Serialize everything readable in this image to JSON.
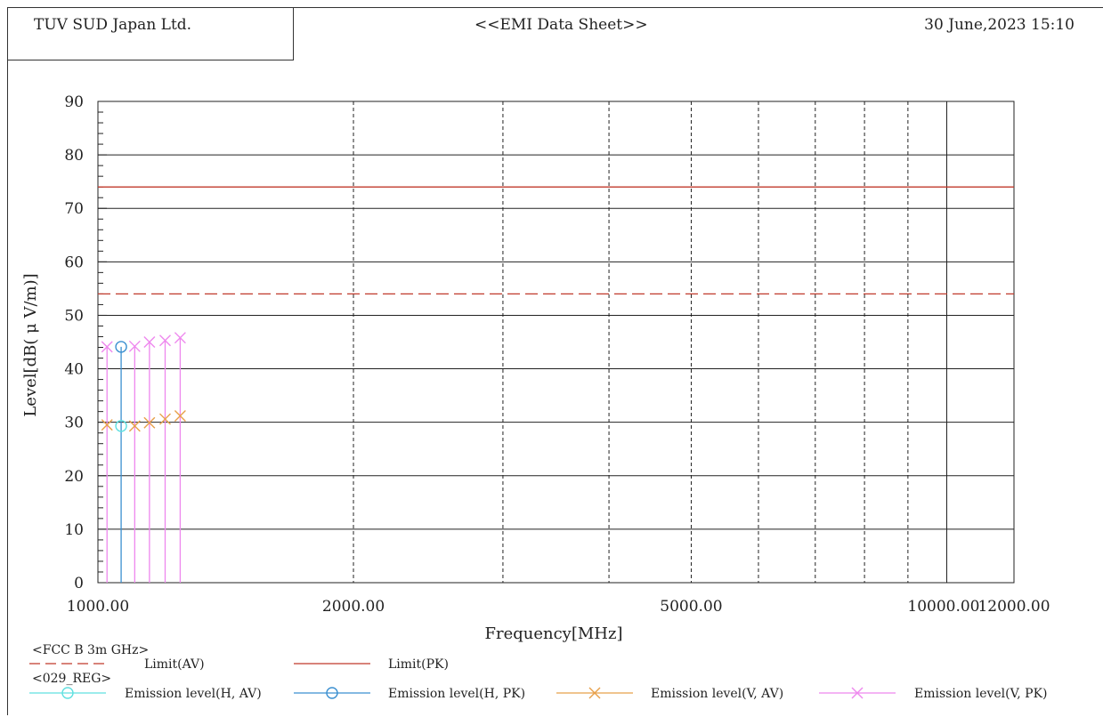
{
  "header": {
    "company": "TUV SUD Japan Ltd.",
    "title": "<<EMI Data Sheet>>",
    "datetime": "30 June,2023 15:10"
  },
  "chart_data": {
    "type": "scatter",
    "xlabel": "Frequency[MHz]",
    "ylabel": "Level[dB( μ V/m)]",
    "xscale": "log",
    "xlim": [
      1000,
      12000
    ],
    "ylim": [
      0,
      90
    ],
    "x_tick_labels": [
      "1000.00",
      "2000.00",
      "5000.00",
      "10000.00",
      "12000.00"
    ],
    "x_grid": [
      1000,
      2000,
      3000,
      4000,
      5000,
      6000,
      7000,
      8000,
      9000,
      10000,
      12000
    ],
    "y_ticks": [
      0,
      10,
      20,
      30,
      40,
      50,
      60,
      70,
      80,
      90
    ],
    "grid": true,
    "limits": [
      {
        "name": "Limit(AV)",
        "value": 54,
        "style": "dashed",
        "color": "#c0392b"
      },
      {
        "name": "Limit(PK)",
        "value": 74,
        "style": "solid",
        "color": "#c0392b"
      }
    ],
    "series": [
      {
        "name": "Emission level(H, AV)",
        "marker": "circle",
        "color": "#5fe0e0",
        "x": [
          1065
        ],
        "y": [
          29.3
        ]
      },
      {
        "name": "Emission level(H, PK)",
        "marker": "circle",
        "color": "#3a8fd0",
        "x": [
          1065
        ],
        "y": [
          44.1
        ]
      },
      {
        "name": "Emission level(V, AV)",
        "marker": "x",
        "color": "#e8a04a",
        "x": [
          1025,
          1105,
          1150,
          1200,
          1250
        ],
        "y": [
          29.5,
          29.3,
          29.9,
          30.6,
          31.2
        ]
      },
      {
        "name": "Emission level(V, PK)",
        "marker": "x",
        "color": "#ee88ee",
        "x": [
          1025,
          1105,
          1150,
          1200,
          1250
        ],
        "y": [
          44.1,
          44.2,
          45.0,
          45.3,
          45.8
        ]
      }
    ]
  },
  "legend": {
    "group1": "<FCC B 3m GHz>",
    "group2": "<029_REG>",
    "items": [
      {
        "label": "Limit(AV)",
        "color": "#c0392b",
        "kind": "dash"
      },
      {
        "label": "Limit(PK)",
        "color": "#c0392b",
        "kind": "line"
      },
      {
        "label": "Emission level(H, AV)",
        "color": "#5fe0e0",
        "kind": "circle"
      },
      {
        "label": "Emission level(H, PK)",
        "color": "#3a8fd0",
        "kind": "circle"
      },
      {
        "label": "Emission level(V, AV)",
        "color": "#e8a04a",
        "kind": "x"
      },
      {
        "label": "Emission level(V, PK)",
        "color": "#ee88ee",
        "kind": "x"
      }
    ]
  }
}
